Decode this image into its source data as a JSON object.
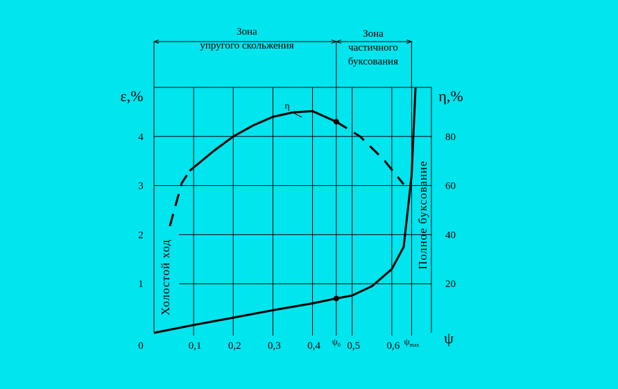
{
  "chart_data": {
    "type": "line",
    "zones": {
      "elastic": [
        "Зона",
        "упругого скольжения"
      ],
      "partial": [
        "Зона",
        "частичного",
        "буксования"
      ]
    },
    "y_left_label": "ε,%",
    "y_right_label": "η,%",
    "x_label": "ψ",
    "origin_label": "0",
    "side_left_label": "Холостой ход",
    "side_right_label": "Полное буксование",
    "x_ticks": [
      {
        "v": 0.1,
        "label": "0,1"
      },
      {
        "v": 0.2,
        "label": "0,2"
      },
      {
        "v": 0.3,
        "label": "0,3"
      },
      {
        "v": 0.4,
        "label": "0,4"
      },
      {
        "v": 0.5,
        "label": "0,5"
      },
      {
        "v": 0.6,
        "label": "0,6"
      }
    ],
    "x_special": [
      {
        "v": 0.46,
        "base": "ψ",
        "sub": "0"
      },
      {
        "v": 0.65,
        "base": "ψ",
        "sub": "max"
      }
    ],
    "y_left_ticks": [
      {
        "v": 1,
        "label": "1"
      },
      {
        "v": 2,
        "label": "2"
      },
      {
        "v": 3,
        "label": "3"
      },
      {
        "v": 4,
        "label": "4"
      }
    ],
    "y_right_ticks": [
      {
        "v": 20,
        "label": "20"
      },
      {
        "v": 40,
        "label": "40"
      },
      {
        "v": 60,
        "label": "60"
      },
      {
        "v": 80,
        "label": "80"
      }
    ],
    "xlim": [
      0,
      0.7
    ],
    "ylim_left": [
      0,
      5
    ],
    "ylim_right": [
      0,
      100
    ],
    "series": [
      {
        "name": "η",
        "axis": "right",
        "segments": [
          {
            "style": "dashed",
            "points": [
              [
                0.04,
                43.5
              ],
              [
                0.07,
                61
              ],
              [
                0.09,
                66
              ]
            ]
          },
          {
            "style": "solid",
            "points": [
              [
                0.09,
                66
              ],
              [
                0.15,
                74
              ],
              [
                0.2,
                80
              ],
              [
                0.25,
                84.5
              ],
              [
                0.3,
                88
              ],
              [
                0.35,
                89.8
              ],
              [
                0.4,
                90.3
              ],
              [
                0.46,
                86
              ]
            ]
          },
          {
            "style": "dashed",
            "points": [
              [
                0.46,
                86
              ],
              [
                0.52,
                80
              ],
              [
                0.58,
                70.5
              ],
              [
                0.63,
                60.5
              ]
            ]
          }
        ],
        "markers": [
          [
            0.46,
            86
          ]
        ]
      },
      {
        "name": "ε",
        "axis": "left",
        "segments": [
          {
            "style": "solid",
            "points": [
              [
                0,
                0
              ],
              [
                0.1,
                0.16
              ],
              [
                0.2,
                0.31
              ],
              [
                0.3,
                0.46
              ],
              [
                0.4,
                0.6
              ],
              [
                0.46,
                0.7
              ],
              [
                0.5,
                0.76
              ],
              [
                0.55,
                0.95
              ],
              [
                0.6,
                1.3
              ],
              [
                0.63,
                1.75
              ],
              [
                0.65,
                3.2
              ],
              [
                0.66,
                5.0
              ]
            ]
          }
        ],
        "markers": [
          [
            0.46,
            0.7
          ]
        ]
      }
    ]
  }
}
